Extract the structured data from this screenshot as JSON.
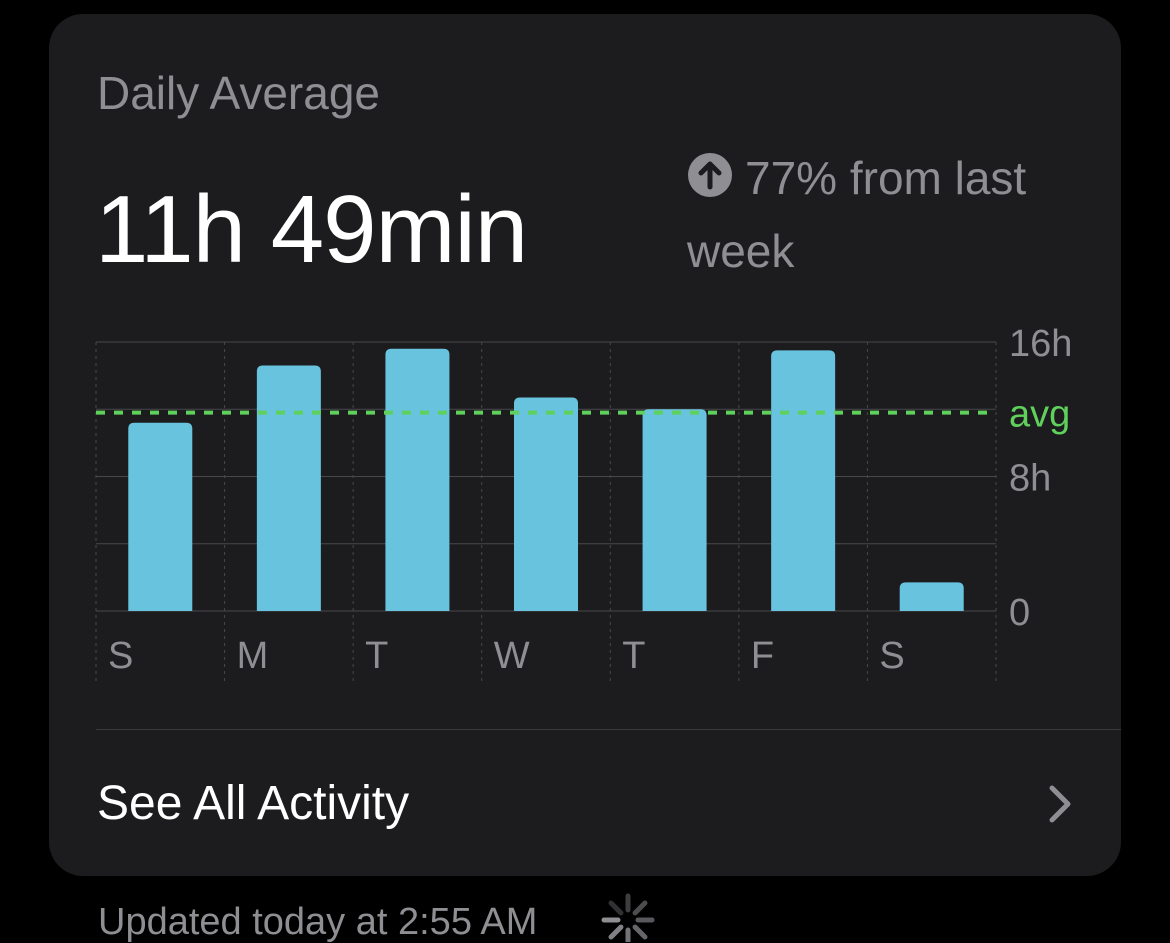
{
  "card": {
    "title": "Daily Average",
    "value": "11h 49min",
    "trend_text": "77% from last week",
    "trend_icon": "arrow-up-circle-icon",
    "see_all_label": "See All Activity",
    "chevron_icon": "chevron-right-icon"
  },
  "footer": {
    "updated_text": "Updated today at 2:55 AM",
    "spinner_icon": "activity-spinner-icon"
  },
  "colors": {
    "bar": "#68c4de",
    "avg_line": "#5fd05b",
    "card_bg": "#1c1c1e",
    "grid": "#48484a",
    "secondary_text": "#8e8e93"
  },
  "chart_data": {
    "type": "bar",
    "categories": [
      "S",
      "M",
      "T",
      "W",
      "T",
      "F",
      "S"
    ],
    "values": [
      11.2,
      14.6,
      15.6,
      12.7,
      12.0,
      15.5,
      1.7
    ],
    "ylim": [
      0,
      16
    ],
    "y_tick_labels": [
      {
        "value": 16,
        "label": "16h"
      },
      {
        "value": 8,
        "label": "8h"
      },
      {
        "value": 0,
        "label": "0"
      }
    ],
    "avg_value": 11.8,
    "avg_label": "avg",
    "grid": true
  }
}
